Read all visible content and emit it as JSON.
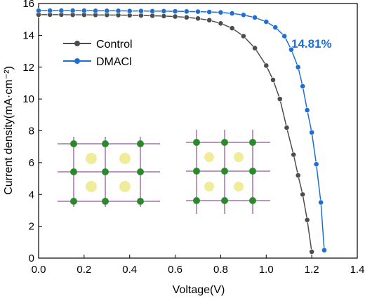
{
  "chart_data": {
    "type": "line",
    "xlabel": "Voltage(V)",
    "ylabel": "Current density(mA·cm⁻²)",
    "annotation": "14.81%",
    "xlim": [
      0,
      1.4
    ],
    "ylim": [
      0,
      16
    ],
    "xticks": [
      {
        "value": 0,
        "label": "0.0"
      },
      0.2,
      0.4,
      0.6,
      0.8,
      {
        "value": 1,
        "label": "1.0"
      },
      1.2,
      1.4
    ],
    "yticks": [
      0,
      2,
      4,
      6,
      8,
      10,
      12,
      14,
      16
    ],
    "legend": "upper left",
    "series": [
      {
        "name": "Control",
        "color": "#4d4d4d",
        "x": [
          0,
          0.05,
          0.1,
          0.15,
          0.2,
          0.25,
          0.3,
          0.35,
          0.4,
          0.45,
          0.5,
          0.55,
          0.6,
          0.65,
          0.7,
          0.75,
          0.8,
          0.85,
          0.9,
          0.95,
          1.0,
          1.03,
          1.06,
          1.09,
          1.12,
          1.14,
          1.16,
          1.18,
          1.2
        ],
        "values": [
          15.3,
          15.3,
          15.3,
          15.29,
          15.29,
          15.28,
          15.28,
          15.27,
          15.26,
          15.25,
          15.23,
          15.21,
          15.18,
          15.13,
          15.06,
          14.95,
          14.75,
          14.45,
          13.95,
          13.2,
          12.1,
          11.2,
          10.0,
          8.2,
          6.5,
          5.2,
          4.0,
          2.4,
          0.4
        ]
      },
      {
        "name": "DMACl",
        "color": "#1f6fd1",
        "x": [
          0,
          0.05,
          0.1,
          0.15,
          0.2,
          0.25,
          0.3,
          0.35,
          0.4,
          0.45,
          0.5,
          0.55,
          0.6,
          0.65,
          0.7,
          0.75,
          0.8,
          0.85,
          0.9,
          0.95,
          1.0,
          1.04,
          1.08,
          1.11,
          1.14,
          1.16,
          1.18,
          1.2,
          1.22,
          1.24,
          1.255
        ],
        "values": [
          15.55,
          15.55,
          15.55,
          15.55,
          15.55,
          15.54,
          15.54,
          15.54,
          15.53,
          15.53,
          15.52,
          15.52,
          15.51,
          15.5,
          15.49,
          15.47,
          15.44,
          15.38,
          15.28,
          15.12,
          14.85,
          14.5,
          13.95,
          13.1,
          12.0,
          10.8,
          9.3,
          7.9,
          5.9,
          3.5,
          0.5
        ]
      }
    ]
  }
}
